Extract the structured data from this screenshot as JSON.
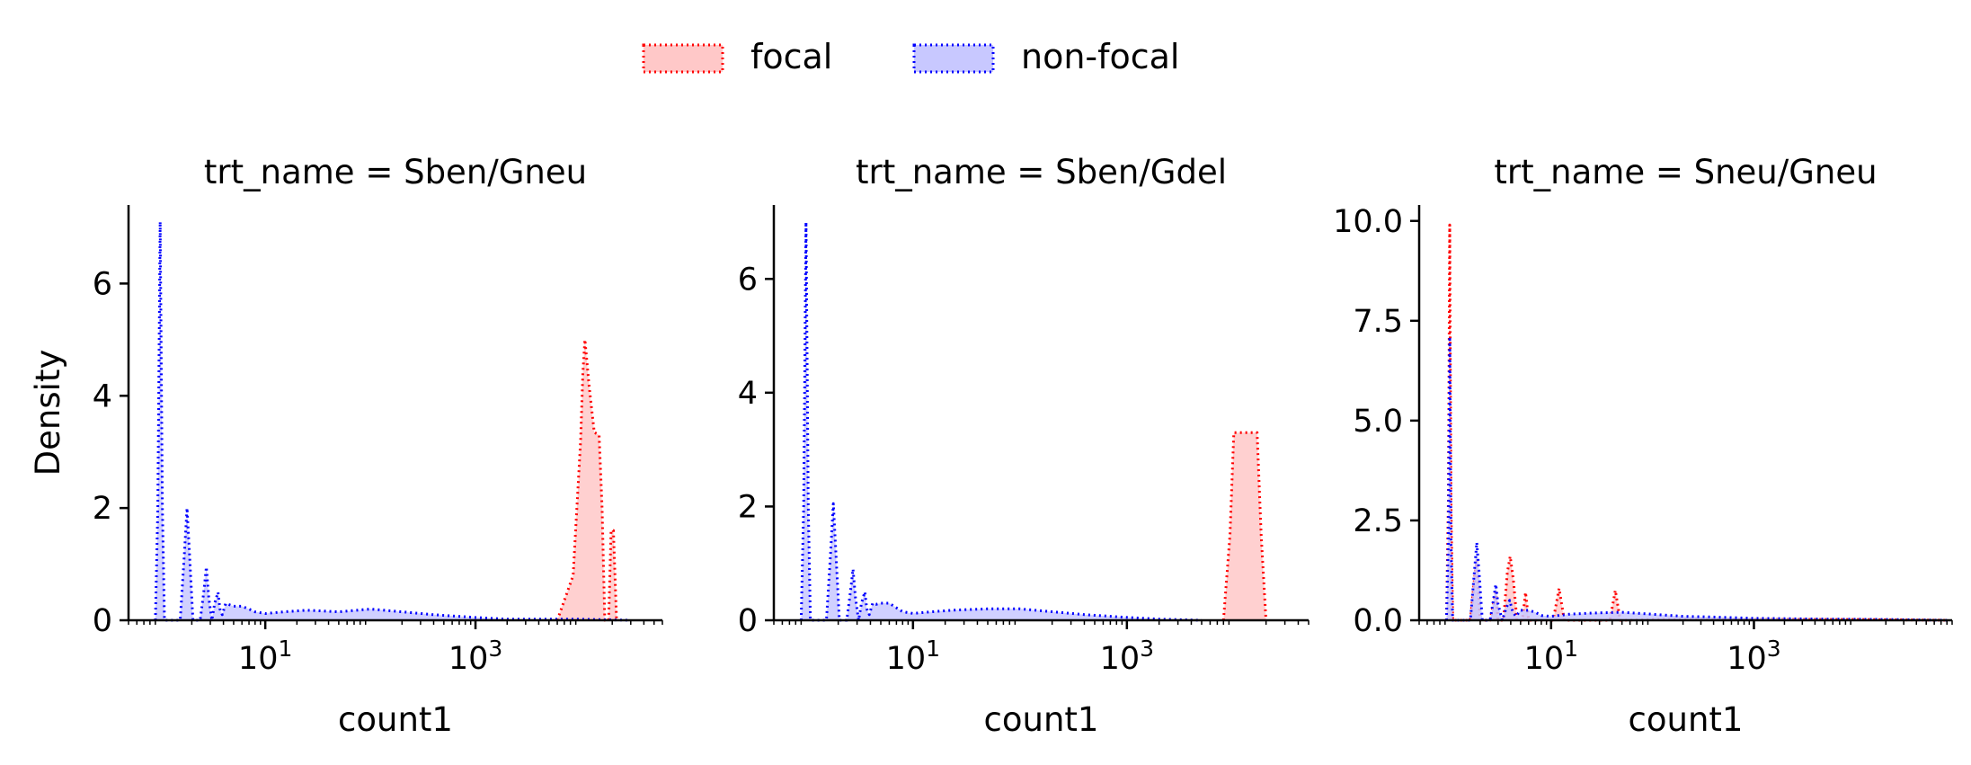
{
  "legend": {
    "position": "top-center",
    "items": [
      {
        "label": "focal",
        "color": "#ff0000",
        "fill": "#ffc8c8"
      },
      {
        "label": "non-focal",
        "color": "#0000ff",
        "fill": "#c8c8ff"
      }
    ]
  },
  "chart_data": [
    {
      "type": "area",
      "title": "trt_name = Sben/Gneu",
      "xlabel": "count1",
      "ylabel": "Density",
      "xscale": "log",
      "xlim": [
        0.5,
        60000
      ],
      "ylim": [
        0,
        7.4
      ],
      "xticks": [
        {
          "value": 10,
          "label": "10¹"
        },
        {
          "value": 1000,
          "label": "10³"
        }
      ],
      "yticks": [
        {
          "value": 0,
          "label": "0"
        },
        {
          "value": 2,
          "label": "2"
        },
        {
          "value": 4,
          "label": "4"
        },
        {
          "value": 6,
          "label": "6"
        }
      ],
      "grid": false,
      "series": [
        {
          "name": "focal",
          "x": [
            6000,
            8500,
            10000,
            10500,
            11000,
            12000,
            13500,
            15000,
            16000,
            17000,
            18500,
            19500,
            20500,
            22000
          ],
          "y": [
            0,
            0.8,
            3.2,
            4.4,
            5.0,
            4.2,
            3.35,
            3.3,
            2.0,
            0,
            0,
            1.6,
            1.6,
            0
          ]
        },
        {
          "name": "non-focal",
          "x": [
            0.9,
            0.95,
            1.0,
            1.05,
            1.1,
            1.55,
            1.7,
            1.8,
            1.9,
            2.05,
            2.4,
            2.6,
            2.75,
            2.9,
            3.1,
            3.3,
            3.55,
            3.7,
            3.9,
            4.2,
            4.5,
            5,
            6,
            7,
            8,
            10,
            15,
            25,
            50,
            100,
            200,
            400,
            1000,
            2000,
            5000,
            10000,
            30000
          ],
          "y": [
            0,
            2,
            7.1,
            2,
            0,
            0,
            1.2,
            2.0,
            1.2,
            0,
            0,
            0.5,
            0.95,
            0.4,
            0,
            0.3,
            0.5,
            0.2,
            0.1,
            0.3,
            0.28,
            0.25,
            0.25,
            0.2,
            0.15,
            0.12,
            0.15,
            0.18,
            0.15,
            0.2,
            0.15,
            0.1,
            0.05,
            0.02,
            0.02,
            0.02,
            0
          ]
        }
      ]
    },
    {
      "type": "area",
      "title": "trt_name = Sben/Gdel",
      "xlabel": "count1",
      "ylabel": "",
      "xscale": "log",
      "xlim": [
        0.5,
        50000
      ],
      "ylim": [
        0,
        7.3
      ],
      "xticks": [
        {
          "value": 10,
          "label": "10¹"
        },
        {
          "value": 1000,
          "label": "10³"
        }
      ],
      "yticks": [
        {
          "value": 0,
          "label": "0"
        },
        {
          "value": 2,
          "label": "2"
        },
        {
          "value": 4,
          "label": "4"
        },
        {
          "value": 6,
          "label": "6"
        }
      ],
      "grid": false,
      "series": [
        {
          "name": "focal",
          "x": [
            8000,
            9200,
            10000,
            12000,
            15000,
            16500,
            18000,
            20000
          ],
          "y": [
            0,
            1.5,
            3.3,
            3.3,
            3.3,
            3.3,
            1.5,
            0
          ]
        },
        {
          "name": "non-focal",
          "x": [
            0.9,
            0.95,
            1.0,
            1.05,
            1.1,
            1.55,
            1.7,
            1.8,
            1.9,
            2.05,
            2.4,
            2.6,
            2.75,
            2.9,
            3.1,
            3.3,
            3.55,
            3.7,
            3.9,
            4.2,
            4.5,
            5,
            6,
            7,
            8,
            10,
            15,
            25,
            50,
            100,
            200,
            400,
            1000,
            2000,
            5000
          ],
          "y": [
            0,
            2,
            7.0,
            2,
            0,
            0,
            1.2,
            2.05,
            1.2,
            0,
            0,
            0.5,
            0.9,
            0.4,
            0,
            0.3,
            0.5,
            0.2,
            0.1,
            0.3,
            0.28,
            0.3,
            0.3,
            0.22,
            0.15,
            0.12,
            0.15,
            0.18,
            0.2,
            0.2,
            0.15,
            0.1,
            0.05,
            0.02,
            0
          ]
        }
      ]
    },
    {
      "type": "area",
      "title": "trt_name = Sneu/Gneu",
      "xlabel": "count1",
      "ylabel": "",
      "xscale": "log",
      "xlim": [
        0.5,
        90000
      ],
      "ylim": [
        0,
        10.4
      ],
      "xticks": [
        {
          "value": 10,
          "label": "10¹"
        },
        {
          "value": 1000,
          "label": "10³"
        }
      ],
      "yticks": [
        {
          "value": 0,
          "label": "0.0"
        },
        {
          "value": 2.5,
          "label": "2.5"
        },
        {
          "value": 5,
          "label": "5.0"
        },
        {
          "value": 7.5,
          "label": "7.5"
        },
        {
          "value": 10,
          "label": "10.0"
        }
      ],
      "grid": false,
      "series": [
        {
          "name": "focal",
          "x": [
            0.93,
            0.97,
            1.0,
            1.03,
            1.07,
            1.6,
            1.75,
            1.85,
            2.0,
            2.5,
            2.7,
            2.85,
            3.0,
            3.4,
            3.7,
            3.95,
            4.25,
            4.6,
            5.2,
            5.6,
            6.0,
            10.5,
            12,
            13.5,
            38,
            43,
            48,
            100,
            10000,
            80000
          ],
          "y": [
            0,
            3,
            9.9,
            3,
            0,
            0,
            1.0,
            1.5,
            0,
            0,
            0.4,
            0.7,
            0,
            0,
            1.2,
            1.6,
            1.0,
            0,
            0,
            0.7,
            0,
            0,
            0.8,
            0,
            0,
            0.75,
            0,
            0.02,
            0.02,
            0
          ]
        },
        {
          "name": "non-focal",
          "x": [
            0.93,
            0.97,
            1.0,
            1.03,
            1.07,
            1.6,
            1.75,
            1.85,
            1.95,
            2.1,
            2.5,
            2.7,
            2.85,
            3.0,
            3.3,
            3.6,
            3.9,
            4.2,
            4.5,
            5,
            6,
            7,
            8,
            10,
            15,
            25,
            50,
            100,
            200,
            400,
            1000,
            5000,
            20000,
            80000
          ],
          "y": [
            0,
            2,
            7.1,
            2,
            0,
            0,
            1.2,
            1.95,
            1.2,
            0,
            0,
            0.5,
            0.9,
            0.4,
            0,
            0.3,
            0.5,
            0.2,
            0.1,
            0.25,
            0.25,
            0.2,
            0.12,
            0.1,
            0.15,
            0.18,
            0.2,
            0.15,
            0.1,
            0.08,
            0.05,
            0.03,
            0.02,
            0
          ]
        }
      ]
    }
  ]
}
